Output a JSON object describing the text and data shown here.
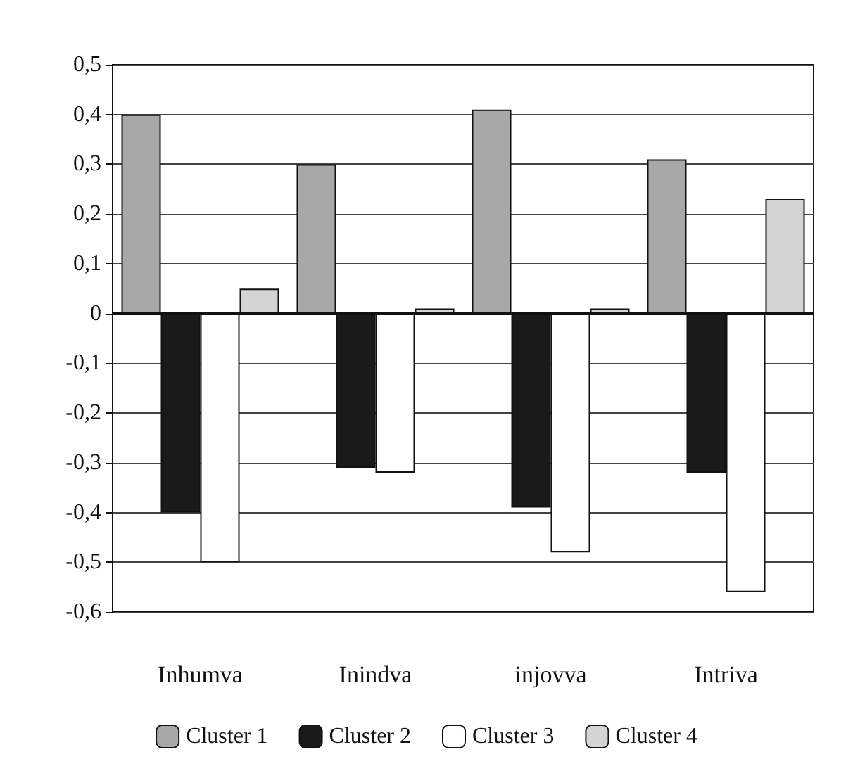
{
  "chart_data": {
    "type": "bar",
    "categories": [
      "Inhumva",
      "Inindva",
      "injovva",
      "Intriva"
    ],
    "series": [
      {
        "name": "Cluster 1",
        "color": "#a8a8a8",
        "values": [
          0.4,
          0.3,
          0.41,
          0.31
        ]
      },
      {
        "name": "Cluster 2",
        "color": "#1a1a1a",
        "values": [
          -0.4,
          -0.31,
          -0.39,
          -0.32
        ]
      },
      {
        "name": "Cluster 3",
        "color": "#ffffff",
        "values": [
          -0.5,
          -0.32,
          -0.48,
          -0.56
        ]
      },
      {
        "name": "Cluster 4",
        "color": "#d4d4d4",
        "values": [
          0.05,
          0.01,
          0.01,
          0.23
        ]
      }
    ],
    "ylim": [
      -0.6,
      0.5
    ],
    "yticks": [
      {
        "value": -0.6,
        "label": "-0,6"
      },
      {
        "value": -0.5,
        "label": "-0,5"
      },
      {
        "value": -0.4,
        "label": "-0,4"
      },
      {
        "value": -0.3,
        "label": "-0,3"
      },
      {
        "value": -0.2,
        "label": "-0,2"
      },
      {
        "value": -0.1,
        "label": "-0,1"
      },
      {
        "value": 0,
        "label": "0"
      },
      {
        "value": 0.1,
        "label": "0,1"
      },
      {
        "value": 0.2,
        "label": "0,2"
      },
      {
        "value": 0.3,
        "label": "0,3"
      },
      {
        "value": 0.4,
        "label": "0,4"
      },
      {
        "value": 0.5,
        "label": "0,5"
      }
    ],
    "grid": "y",
    "legend": "bottom"
  }
}
